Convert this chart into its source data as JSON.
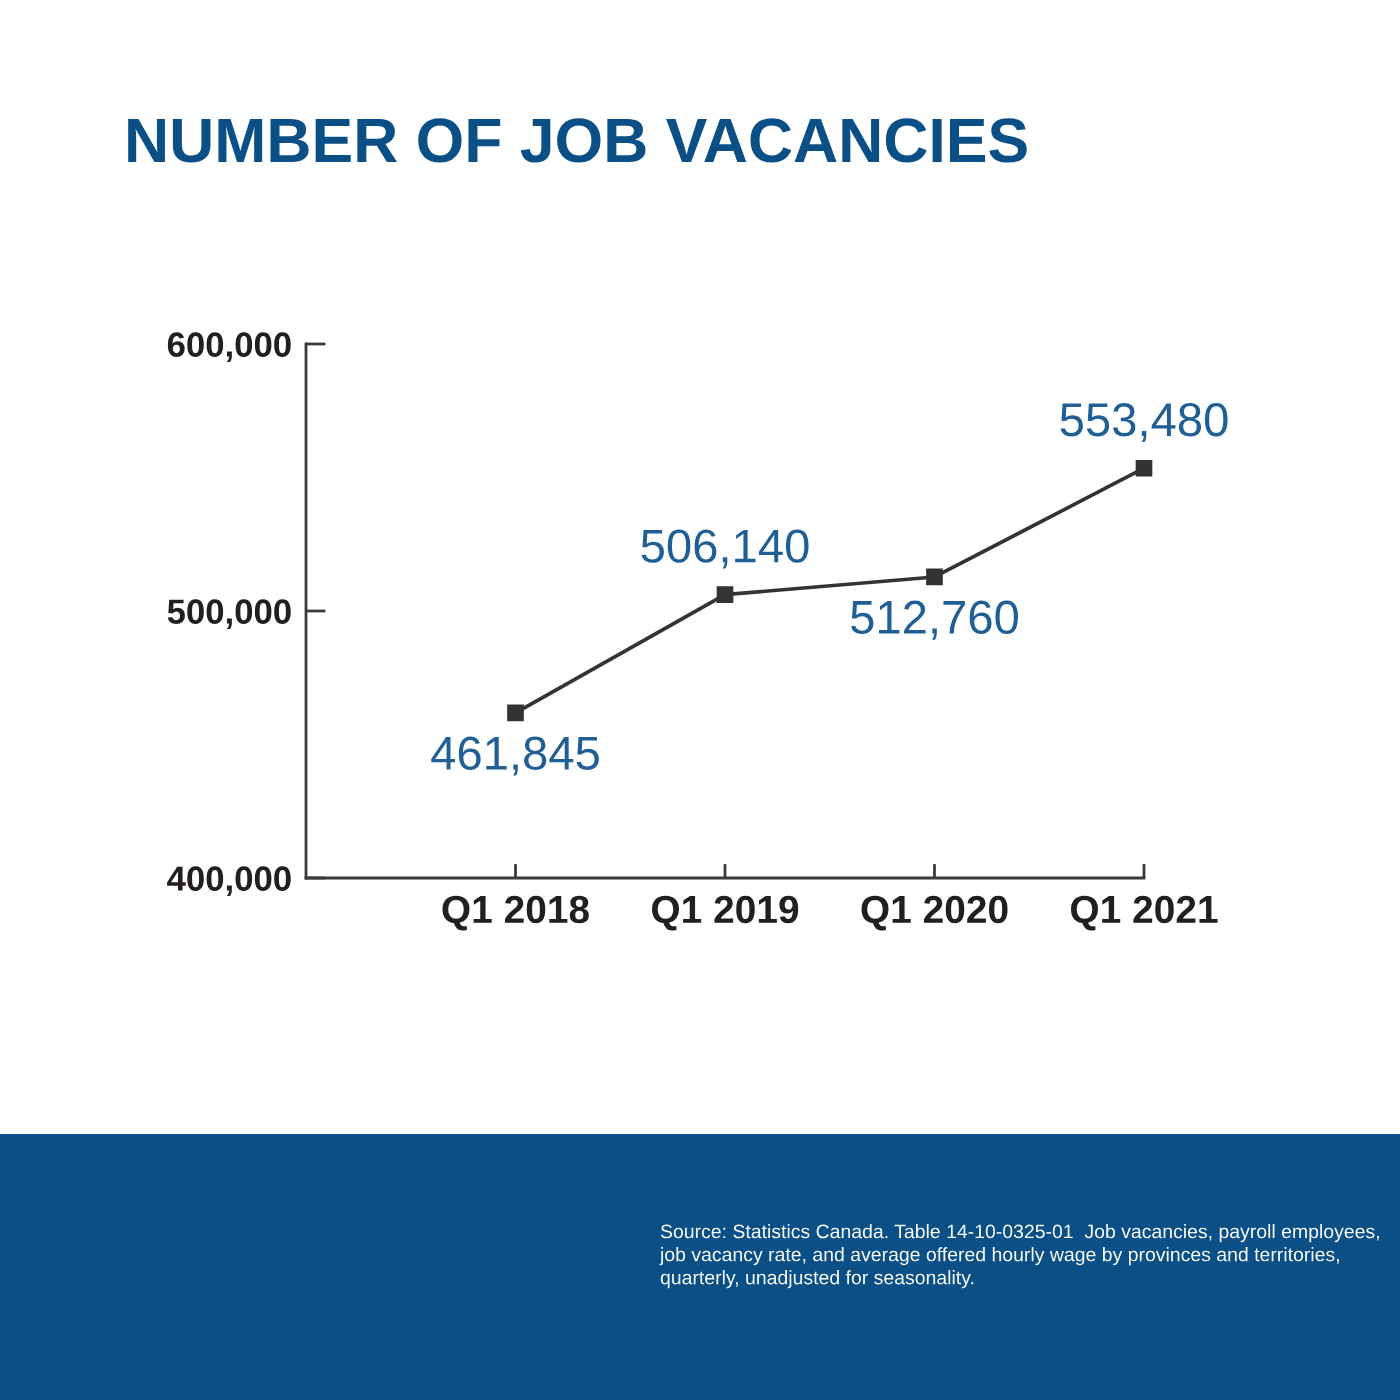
{
  "chart_data": {
    "type": "line",
    "title": "NUMBER OF JOB VACANCIES",
    "categories": [
      "Q1 2018",
      "Q1 2019",
      "Q1 2020",
      "Q1 2021"
    ],
    "values": [
      461845,
      506140,
      512760,
      553480
    ],
    "value_labels": [
      "461,845",
      "506,140",
      "512,760",
      "553,480"
    ],
    "color": "#333333",
    "marker": "square",
    "line_style": "solid",
    "ylim": [
      400000,
      600000
    ],
    "yticks": [
      {
        "value": 400000,
        "label": "400,000"
      },
      {
        "value": 500000,
        "label": "500,000"
      },
      {
        "value": 600000,
        "label": "600,000"
      }
    ],
    "annotations": [
      "Source: Statistics Canada. Table 14-10-0325-01  Job vacancies, payroll employees, job vacancy rate, and average offered hourly wage by provinces and territories, quarterly, unadjusted for seasonality."
    ]
  }
}
